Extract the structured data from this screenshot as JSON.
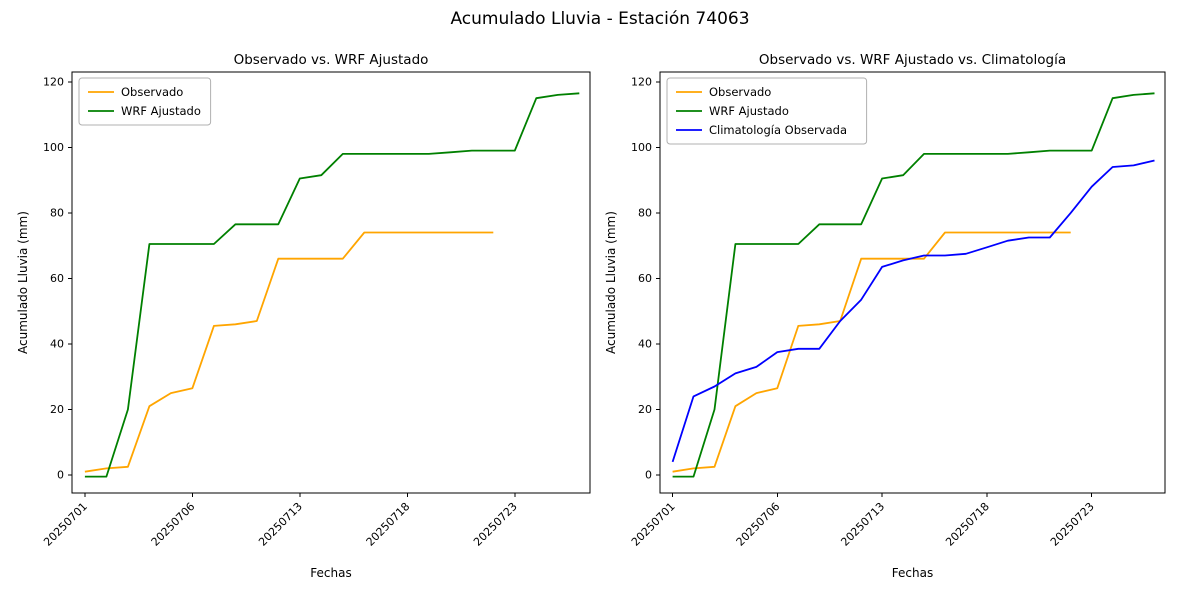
{
  "figure": {
    "suptitle": "Acumulado Lluvia - Estación 74063"
  },
  "chart_data": [
    {
      "type": "line",
      "title": "Observado vs. WRF Ajustado",
      "xlabel": "Fechas",
      "ylabel": "Acumulado Lluvia (mm)",
      "x_tick_positions": [
        0,
        5,
        10,
        15,
        20
      ],
      "x_tick_labels": [
        "20250701",
        "20250706",
        "20250713",
        "20250718",
        "20250723"
      ],
      "yticks": [
        0,
        20,
        40,
        60,
        80,
        100,
        120
      ],
      "xlim": [
        -0.6,
        23.5
      ],
      "ylim": [
        -5.5,
        123
      ],
      "grid": false,
      "legend_position": "upper left",
      "series": [
        {
          "name": "Observado",
          "color": "#FFA500",
          "values": [
            1,
            2,
            2.5,
            21,
            25,
            26.5,
            45.5,
            46,
            47,
            66,
            66,
            66,
            66,
            74,
            74,
            74,
            74,
            74,
            74,
            74,
            null,
            null,
            null,
            null
          ]
        },
        {
          "name": "WRF Ajustado",
          "color": "#008000",
          "values": [
            -0.5,
            -0.5,
            20,
            70.5,
            70.5,
            70.5,
            70.5,
            76.5,
            76.5,
            76.5,
            90.5,
            91.5,
            98,
            98,
            98,
            98,
            98,
            98.5,
            99,
            99,
            99,
            115,
            116,
            116.5
          ]
        }
      ]
    },
    {
      "type": "line",
      "title": "Observado vs. WRF Ajustado vs. Climatología",
      "xlabel": "Fechas",
      "ylabel": "Acumulado Lluvia (mm)",
      "x_tick_positions": [
        0,
        5,
        10,
        15,
        20
      ],
      "x_tick_labels": [
        "20250701",
        "20250706",
        "20250713",
        "20250718",
        "20250723"
      ],
      "yticks": [
        0,
        20,
        40,
        60,
        80,
        100,
        120
      ],
      "xlim": [
        -0.6,
        23.5
      ],
      "ylim": [
        -5.5,
        123
      ],
      "grid": false,
      "legend_position": "upper left",
      "series": [
        {
          "name": "Observado",
          "color": "#FFA500",
          "values": [
            1,
            2,
            2.5,
            21,
            25,
            26.5,
            45.5,
            46,
            47,
            66,
            66,
            66,
            66,
            74,
            74,
            74,
            74,
            74,
            74,
            74,
            null,
            null,
            null,
            null
          ]
        },
        {
          "name": "WRF Ajustado",
          "color": "#008000",
          "values": [
            -0.5,
            -0.5,
            20,
            70.5,
            70.5,
            70.5,
            70.5,
            76.5,
            76.5,
            76.5,
            90.5,
            91.5,
            98,
            98,
            98,
            98,
            98,
            98.5,
            99,
            99,
            99,
            115,
            116,
            116.5
          ]
        },
        {
          "name": "Climatología Observada",
          "color": "#0000FF",
          "values": [
            4,
            24,
            27,
            31,
            33,
            37.5,
            38.5,
            38.5,
            47,
            53.5,
            63.5,
            65.5,
            67,
            67,
            67.5,
            69.5,
            71.5,
            72.5,
            72.5,
            80,
            88,
            94,
            94.5,
            96
          ]
        }
      ]
    }
  ]
}
